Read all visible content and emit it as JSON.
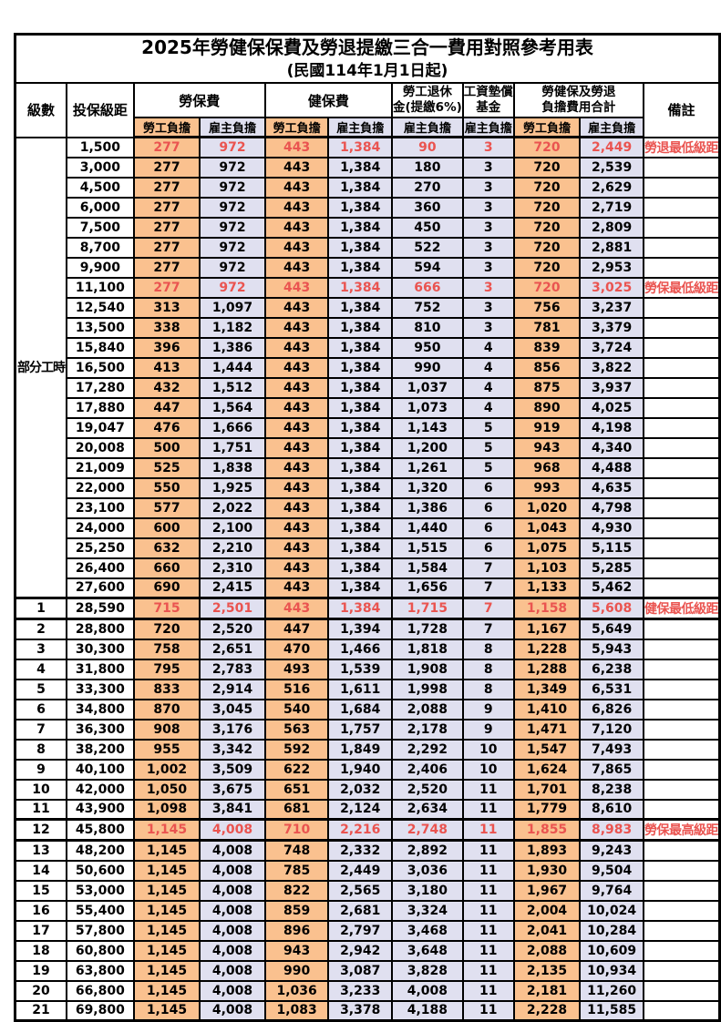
{
  "title": "2025年勞健保保費及勞退提繳三合一費用對照參考用表",
  "subtitle": "(民國114年1月1日起)",
  "columns": {
    "level": "級數",
    "bracket": "投保級距",
    "labor_fee": "勞保費",
    "health_fee": "健保費",
    "pension_line1": "勞工退休",
    "pension_line2": "金(提繳6%)",
    "wage_fund_line1": "工資墊償",
    "wage_fund_line2": "基金",
    "total_line1": "勞健保及勞退",
    "total_line2": "負擔費用合計",
    "remark": "備註",
    "employee_share": "勞工負擔",
    "employer_share": "雇主負擔"
  },
  "part_time_label": "部分工時",
  "part_time_rowspan": 23,
  "colors": {
    "employee_bg": "#FAC18F",
    "employer_bg": "#E0E0F0",
    "highlight_text": "#EA5450",
    "border": "#000000"
  },
  "rows": [
    {
      "level": "",
      "bracket": "1,500",
      "values": [
        "277",
        "972",
        "443",
        "1,384",
        "90",
        "3",
        "720",
        "2,449"
      ],
      "remark": "勞退最低級距",
      "red": true
    },
    {
      "level": "",
      "bracket": "3,000",
      "values": [
        "277",
        "972",
        "443",
        "1,384",
        "180",
        "3",
        "720",
        "2,539"
      ],
      "remark": ""
    },
    {
      "level": "",
      "bracket": "4,500",
      "values": [
        "277",
        "972",
        "443",
        "1,384",
        "270",
        "3",
        "720",
        "2,629"
      ],
      "remark": ""
    },
    {
      "level": "",
      "bracket": "6,000",
      "values": [
        "277",
        "972",
        "443",
        "1,384",
        "360",
        "3",
        "720",
        "2,719"
      ],
      "remark": ""
    },
    {
      "level": "",
      "bracket": "7,500",
      "values": [
        "277",
        "972",
        "443",
        "1,384",
        "450",
        "3",
        "720",
        "2,809"
      ],
      "remark": ""
    },
    {
      "level": "",
      "bracket": "8,700",
      "values": [
        "277",
        "972",
        "443",
        "1,384",
        "522",
        "3",
        "720",
        "2,881"
      ],
      "remark": ""
    },
    {
      "level": "",
      "bracket": "9,900",
      "values": [
        "277",
        "972",
        "443",
        "1,384",
        "594",
        "3",
        "720",
        "2,953"
      ],
      "remark": ""
    },
    {
      "level": "",
      "bracket": "11,100",
      "values": [
        "277",
        "972",
        "443",
        "1,384",
        "666",
        "3",
        "720",
        "3,025"
      ],
      "remark": "勞保最低級距",
      "red": true
    },
    {
      "level": "",
      "bracket": "12,540",
      "values": [
        "313",
        "1,097",
        "443",
        "1,384",
        "752",
        "3",
        "756",
        "3,237"
      ],
      "remark": ""
    },
    {
      "level": "",
      "bracket": "13,500",
      "values": [
        "338",
        "1,182",
        "443",
        "1,384",
        "810",
        "3",
        "781",
        "3,379"
      ],
      "remark": ""
    },
    {
      "level": "",
      "bracket": "15,840",
      "values": [
        "396",
        "1,386",
        "443",
        "1,384",
        "950",
        "4",
        "839",
        "3,724"
      ],
      "remark": ""
    },
    {
      "level": "",
      "bracket": "16,500",
      "values": [
        "413",
        "1,444",
        "443",
        "1,384",
        "990",
        "4",
        "856",
        "3,822"
      ],
      "remark": ""
    },
    {
      "level": "",
      "bracket": "17,280",
      "values": [
        "432",
        "1,512",
        "443",
        "1,384",
        "1,037",
        "4",
        "875",
        "3,937"
      ],
      "remark": ""
    },
    {
      "level": "",
      "bracket": "17,880",
      "values": [
        "447",
        "1,564",
        "443",
        "1,384",
        "1,073",
        "4",
        "890",
        "4,025"
      ],
      "remark": ""
    },
    {
      "level": "",
      "bracket": "19,047",
      "values": [
        "476",
        "1,666",
        "443",
        "1,384",
        "1,143",
        "5",
        "919",
        "4,198"
      ],
      "remark": ""
    },
    {
      "level": "",
      "bracket": "20,008",
      "values": [
        "500",
        "1,751",
        "443",
        "1,384",
        "1,200",
        "5",
        "943",
        "4,340"
      ],
      "remark": ""
    },
    {
      "level": "",
      "bracket": "21,009",
      "values": [
        "525",
        "1,838",
        "443",
        "1,384",
        "1,261",
        "5",
        "968",
        "4,488"
      ],
      "remark": ""
    },
    {
      "level": "",
      "bracket": "22,000",
      "values": [
        "550",
        "1,925",
        "443",
        "1,384",
        "1,320",
        "6",
        "993",
        "4,635"
      ],
      "remark": ""
    },
    {
      "level": "",
      "bracket": "23,100",
      "values": [
        "577",
        "2,022",
        "443",
        "1,384",
        "1,386",
        "6",
        "1,020",
        "4,798"
      ],
      "remark": ""
    },
    {
      "level": "",
      "bracket": "24,000",
      "values": [
        "600",
        "2,100",
        "443",
        "1,384",
        "1,440",
        "6",
        "1,043",
        "4,930"
      ],
      "remark": ""
    },
    {
      "level": "",
      "bracket": "25,250",
      "values": [
        "632",
        "2,210",
        "443",
        "1,384",
        "1,515",
        "6",
        "1,075",
        "5,115"
      ],
      "remark": ""
    },
    {
      "level": "",
      "bracket": "26,400",
      "values": [
        "660",
        "2,310",
        "443",
        "1,384",
        "1,584",
        "7",
        "1,103",
        "5,285"
      ],
      "remark": ""
    },
    {
      "level": "",
      "bracket": "27,600",
      "values": [
        "690",
        "2,415",
        "443",
        "1,384",
        "1,656",
        "7",
        "1,133",
        "5,462"
      ],
      "remark": ""
    },
    {
      "level": "1",
      "bracket": "28,590",
      "values": [
        "715",
        "2,501",
        "443",
        "1,384",
        "1,715",
        "7",
        "1,158",
        "5,608"
      ],
      "remark": "健保最低級距",
      "red": true,
      "thick": true
    },
    {
      "level": "2",
      "bracket": "28,800",
      "values": [
        "720",
        "2,520",
        "447",
        "1,394",
        "1,728",
        "7",
        "1,167",
        "5,649"
      ],
      "remark": ""
    },
    {
      "level": "3",
      "bracket": "30,300",
      "values": [
        "758",
        "2,651",
        "470",
        "1,466",
        "1,818",
        "8",
        "1,228",
        "5,943"
      ],
      "remark": ""
    },
    {
      "level": "4",
      "bracket": "31,800",
      "values": [
        "795",
        "2,783",
        "493",
        "1,539",
        "1,908",
        "8",
        "1,288",
        "6,238"
      ],
      "remark": ""
    },
    {
      "level": "5",
      "bracket": "33,300",
      "values": [
        "833",
        "2,914",
        "516",
        "1,611",
        "1,998",
        "8",
        "1,349",
        "6,531"
      ],
      "remark": ""
    },
    {
      "level": "6",
      "bracket": "34,800",
      "values": [
        "870",
        "3,045",
        "540",
        "1,684",
        "2,088",
        "9",
        "1,410",
        "6,826"
      ],
      "remark": ""
    },
    {
      "level": "7",
      "bracket": "36,300",
      "values": [
        "908",
        "3,176",
        "563",
        "1,757",
        "2,178",
        "9",
        "1,471",
        "7,120"
      ],
      "remark": ""
    },
    {
      "level": "8",
      "bracket": "38,200",
      "values": [
        "955",
        "3,342",
        "592",
        "1,849",
        "2,292",
        "10",
        "1,547",
        "7,493"
      ],
      "remark": ""
    },
    {
      "level": "9",
      "bracket": "40,100",
      "values": [
        "1,002",
        "3,509",
        "622",
        "1,940",
        "2,406",
        "10",
        "1,624",
        "7,865"
      ],
      "remark": ""
    },
    {
      "level": "10",
      "bracket": "42,000",
      "values": [
        "1,050",
        "3,675",
        "651",
        "2,032",
        "2,520",
        "11",
        "1,701",
        "8,238"
      ],
      "remark": ""
    },
    {
      "level": "11",
      "bracket": "43,900",
      "values": [
        "1,098",
        "3,841",
        "681",
        "2,124",
        "2,634",
        "11",
        "1,779",
        "8,610"
      ],
      "remark": ""
    },
    {
      "level": "12",
      "bracket": "45,800",
      "values": [
        "1,145",
        "4,008",
        "710",
        "2,216",
        "2,748",
        "11",
        "1,855",
        "8,983"
      ],
      "remark": "勞保最高級距",
      "red": true,
      "thick": true
    },
    {
      "level": "13",
      "bracket": "48,200",
      "values": [
        "1,145",
        "4,008",
        "748",
        "2,332",
        "2,892",
        "11",
        "1,893",
        "9,243"
      ],
      "remark": ""
    },
    {
      "level": "14",
      "bracket": "50,600",
      "values": [
        "1,145",
        "4,008",
        "785",
        "2,449",
        "3,036",
        "11",
        "1,930",
        "9,504"
      ],
      "remark": ""
    },
    {
      "level": "15",
      "bracket": "53,000",
      "values": [
        "1,145",
        "4,008",
        "822",
        "2,565",
        "3,180",
        "11",
        "1,967",
        "9,764"
      ],
      "remark": ""
    },
    {
      "level": "16",
      "bracket": "55,400",
      "values": [
        "1,145",
        "4,008",
        "859",
        "2,681",
        "3,324",
        "11",
        "2,004",
        "10,024"
      ],
      "remark": ""
    },
    {
      "level": "17",
      "bracket": "57,800",
      "values": [
        "1,145",
        "4,008",
        "896",
        "2,797",
        "3,468",
        "11",
        "2,041",
        "10,284"
      ],
      "remark": ""
    },
    {
      "level": "18",
      "bracket": "60,800",
      "values": [
        "1,145",
        "4,008",
        "943",
        "2,942",
        "3,648",
        "11",
        "2,088",
        "10,609"
      ],
      "remark": ""
    },
    {
      "level": "19",
      "bracket": "63,800",
      "values": [
        "1,145",
        "4,008",
        "990",
        "3,087",
        "3,828",
        "11",
        "2,135",
        "10,934"
      ],
      "remark": ""
    },
    {
      "level": "20",
      "bracket": "66,800",
      "values": [
        "1,145",
        "4,008",
        "1,036",
        "3,233",
        "4,008",
        "11",
        "2,181",
        "11,260"
      ],
      "remark": ""
    },
    {
      "level": "21",
      "bracket": "69,800",
      "values": [
        "1,145",
        "4,008",
        "1,083",
        "3,378",
        "4,188",
        "11",
        "2,228",
        "11,585"
      ],
      "remark": ""
    }
  ]
}
